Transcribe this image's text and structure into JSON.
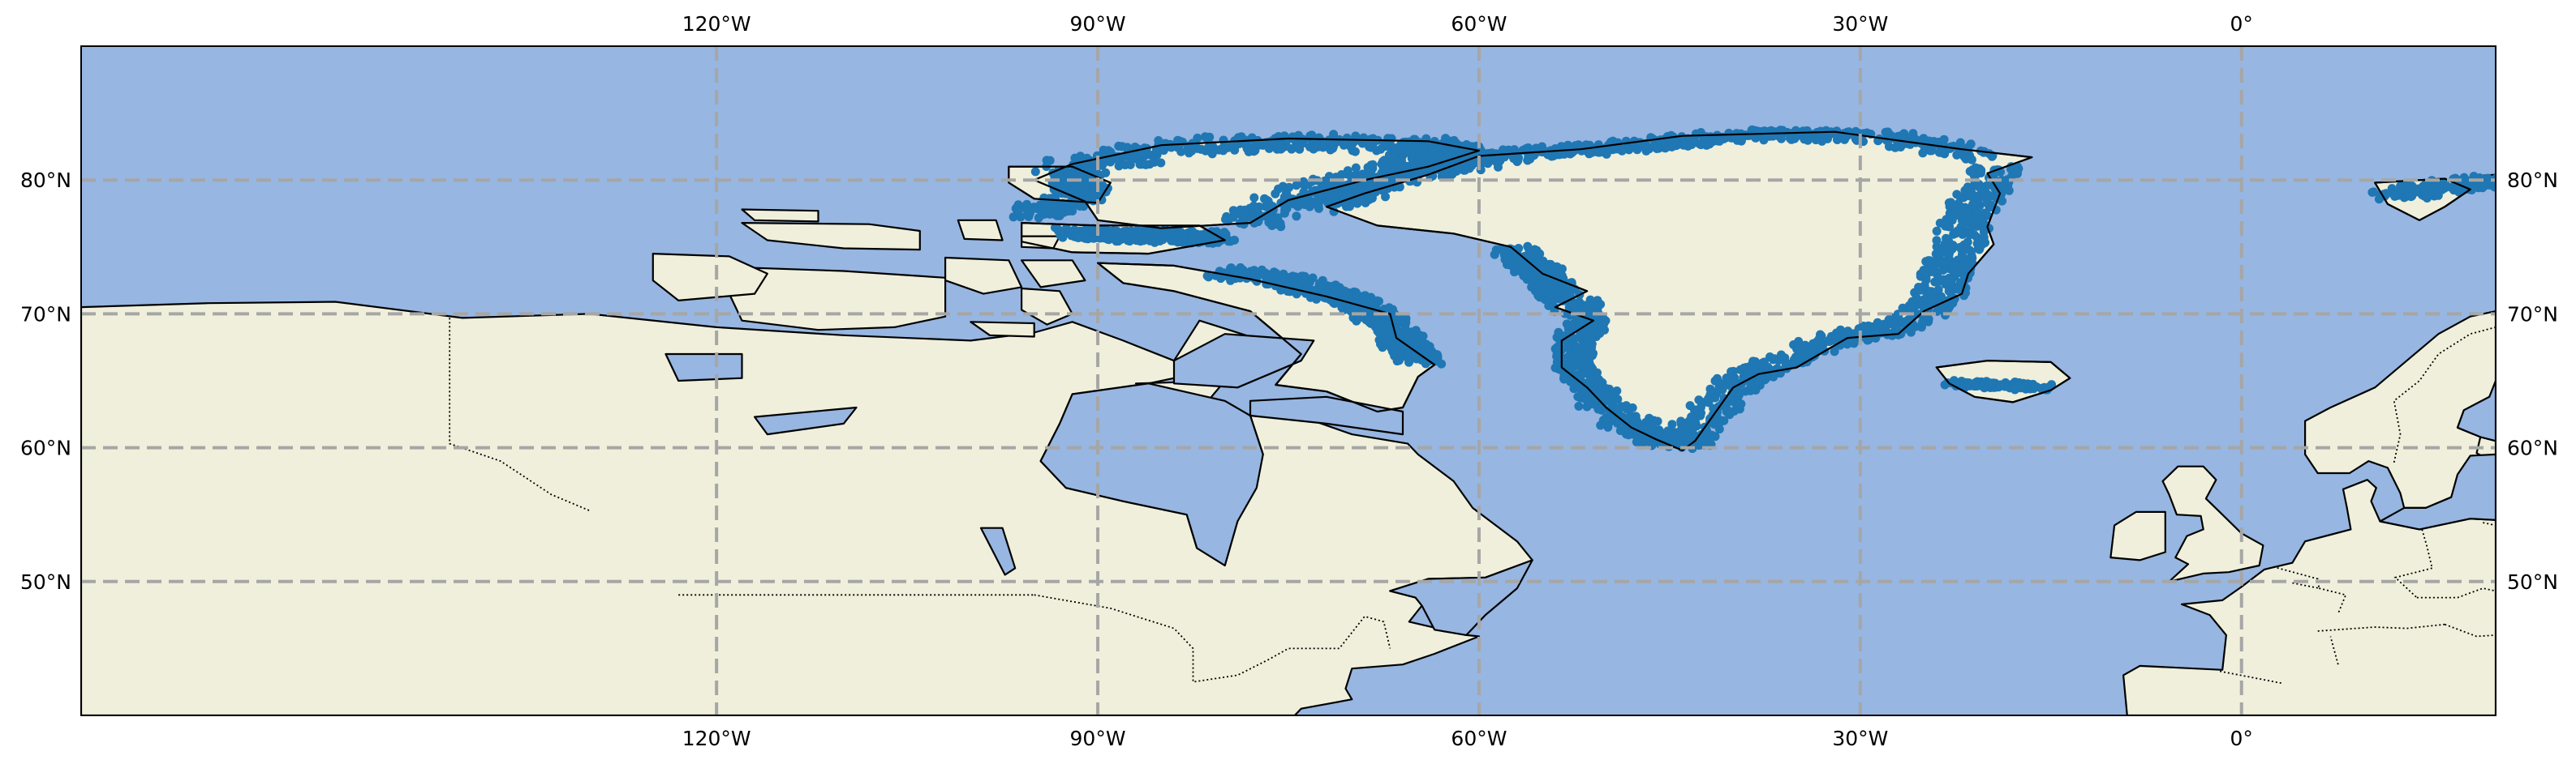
{
  "map": {
    "projection": "PlateCarree",
    "extent": {
      "lon_min": -170,
      "lon_max": 20,
      "lat_min": 40,
      "lat_max": 90
    },
    "colors": {
      "ocean": "#97b6e1",
      "land": "#efefdb",
      "coastline": "#000000",
      "gridline": "#a6a6a6",
      "points": "#1f77b4"
    },
    "gridlines": {
      "style": "dashed",
      "lon_ticks": [
        {
          "lon": -120,
          "label": "120°W"
        },
        {
          "lon": -90,
          "label": "90°W"
        },
        {
          "lon": -60,
          "label": "60°W"
        },
        {
          "lon": -30,
          "label": "30°W"
        },
        {
          "lon": 0,
          "label": "0°"
        }
      ],
      "lat_ticks": [
        {
          "lat": 50,
          "label": "50°N"
        },
        {
          "lat": 60,
          "label": "60°N"
        },
        {
          "lat": 70,
          "label": "70°N"
        },
        {
          "lat": 80,
          "label": "80°N"
        }
      ]
    },
    "features": [
      "coastline",
      "land",
      "ocean",
      "borders"
    ],
    "point_regions": [
      "Greenland coast",
      "Canadian Arctic Archipelago (Ellesmere, Devon, Axel Heiberg)",
      "Baffin Island",
      "Iceland",
      "Svalbard"
    ]
  }
}
